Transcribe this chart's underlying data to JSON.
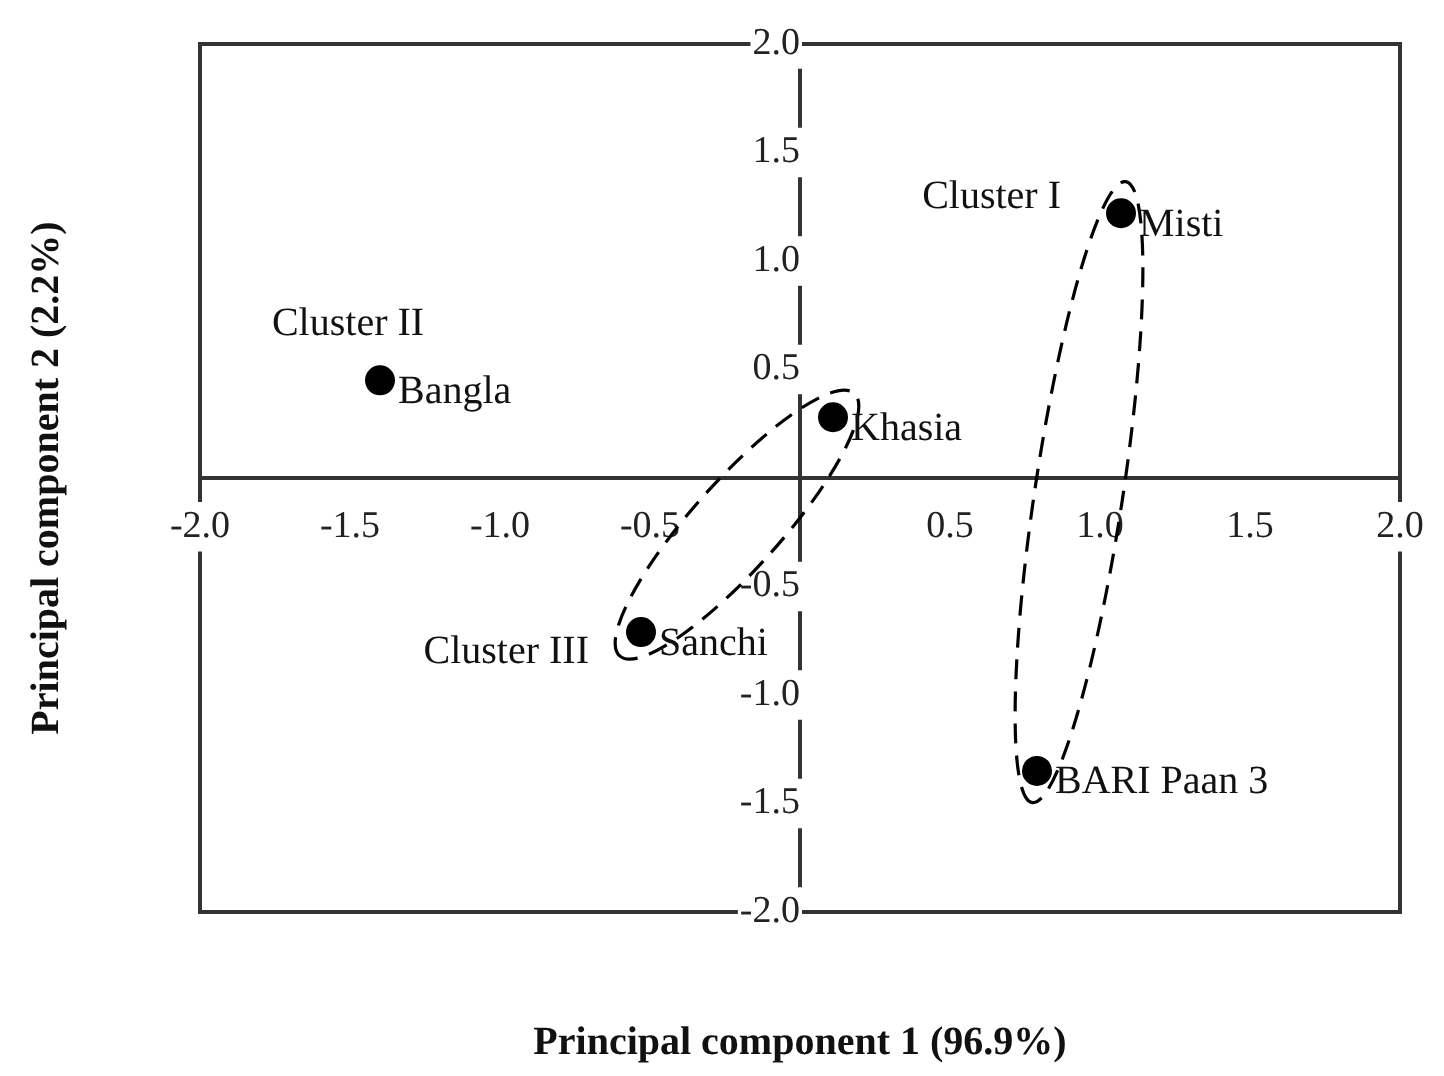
{
  "chart_data": {
    "type": "scatter",
    "xlabel": "Principal component 1 (96.9%)",
    "ylabel": "Principal component 2 (2.2%)",
    "xlim": [
      -2,
      2
    ],
    "ylim": [
      -2,
      2
    ],
    "xticks": [
      {
        "value": -2,
        "label": "-2.0"
      },
      {
        "value": -1.5,
        "label": "-1.5"
      },
      {
        "value": -1,
        "label": "-1.0"
      },
      {
        "value": -0.5,
        "label": "-0.5"
      },
      {
        "value": 0.5,
        "label": "0.5"
      },
      {
        "value": 1,
        "label": "1.0"
      },
      {
        "value": 1.5,
        "label": "1.5"
      },
      {
        "value": 2,
        "label": "2.0"
      }
    ],
    "yticks": [
      {
        "value": -2,
        "label": "-2.0"
      },
      {
        "value": -1.5,
        "label": "-1.5"
      },
      {
        "value": -1,
        "label": "-1.0"
      },
      {
        "value": -0.5,
        "label": "-0.5"
      },
      {
        "value": 0.5,
        "label": "0.5"
      },
      {
        "value": 1,
        "label": "1.0"
      },
      {
        "value": 1.5,
        "label": "1.5"
      },
      {
        "value": 2,
        "label": "2.0"
      }
    ],
    "series": [
      {
        "name": "Bangla",
        "color": "#000000",
        "x": [
          -1.4
        ],
        "values": [
          0.45
        ]
      },
      {
        "name": "Khasia",
        "color": "#000000",
        "x": [
          0.11
        ],
        "values": [
          0.28
        ]
      },
      {
        "name": "Sanchi",
        "color": "#000000",
        "x": [
          -0.53
        ],
        "values": [
          -0.71
        ]
      },
      {
        "name": "Misti",
        "color": "#000000",
        "x": [
          1.07
        ],
        "values": [
          1.22
        ]
      },
      {
        "name": "BARI Paan 3",
        "color": "#000000",
        "x": [
          0.79
        ],
        "values": [
          -1.35
        ]
      }
    ],
    "annotations": [
      "Cluster I",
      "Cluster II",
      "Cluster III"
    ],
    "marker": "circle",
    "grid": false,
    "legend": false
  }
}
